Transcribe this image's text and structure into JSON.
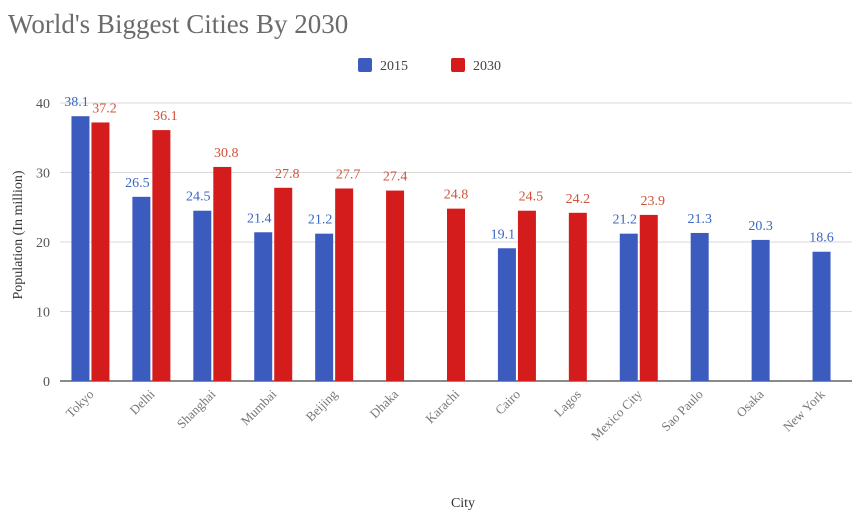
{
  "chart_data": {
    "type": "bar",
    "title": "World's Biggest Cities By 2030",
    "xlabel": "City",
    "ylabel": "Population (In million)",
    "ylim": [
      0,
      40
    ],
    "yticks": [
      0,
      10,
      20,
      30,
      40
    ],
    "grid": true,
    "legend_position": "top",
    "categories": [
      "Tokyo",
      "Delhi",
      "Shanghai",
      "Mumbai",
      "Beijing",
      "Dhaka",
      "Karachi",
      "Cairo",
      "Lagos",
      "Mexico City",
      "Sao Paulo",
      "Osaka",
      "New York"
    ],
    "series": [
      {
        "name": "2015",
        "color": "#3c5bbf",
        "label_color": "#3a66c4",
        "values": [
          38.1,
          26.5,
          24.5,
          21.4,
          21.2,
          null,
          null,
          19.1,
          null,
          21.2,
          21.3,
          20.3,
          18.6
        ]
      },
      {
        "name": "2030",
        "color": "#d41c1c",
        "label_color": "#d0533a",
        "values": [
          37.2,
          36.1,
          30.8,
          27.8,
          27.7,
          27.4,
          24.8,
          24.5,
          24.2,
          23.9,
          null,
          null,
          null
        ]
      }
    ]
  }
}
